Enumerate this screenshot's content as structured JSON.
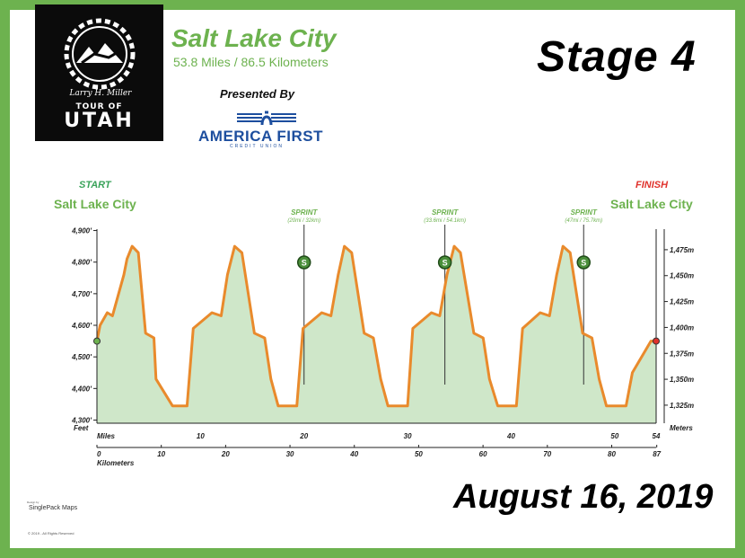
{
  "event": {
    "logo_tour": "TOUR OF",
    "logo_utah": "UTAH",
    "logo_signature": "Larry H. Miller",
    "city": "Salt Lake City",
    "distance": "53.8 Miles / 86.5 Kilometers",
    "stage": "Stage 4",
    "presented_by": "Presented By",
    "sponsor_name": "AMERICA FIRST",
    "sponsor_sub": "CREDIT UNION",
    "date": "August 16, 2019",
    "maker": "SinglePack Maps",
    "maker_small": "Design by",
    "copyright": "© 2019 - All Rights Reserved"
  },
  "labels": {
    "start": "START",
    "start_city": "Salt Lake City",
    "finish": "FINISH",
    "finish_city": "Salt Lake City"
  },
  "colors": {
    "brand_green": "#6db24f",
    "profile_line": "#e98a2c",
    "profile_fill": "#cfe7c9",
    "start_dot": "#6db24f",
    "finish_dot": "#e0322c",
    "sponsor_blue": "#1d4e9e"
  },
  "chart_data": {
    "type": "area",
    "xlabel": "Miles",
    "x2label": "Kilometers",
    "ylabel": "Feet",
    "y2label": "Meters",
    "xlim": [
      0,
      54
    ],
    "ylim": [
      4290,
      4930
    ],
    "grid": false,
    "x_ticks": [
      0,
      10,
      20,
      30,
      40,
      50,
      54
    ],
    "x_tick_labels": [
      "0",
      "10",
      "20",
      "30",
      "40",
      "50",
      "54"
    ],
    "x2_ticks_km": [
      0,
      10,
      20,
      30,
      40,
      50,
      60,
      70,
      80,
      87
    ],
    "x2_tick_labels": [
      "0",
      "10",
      "20",
      "30",
      "40",
      "50",
      "60",
      "70",
      "80",
      "87"
    ],
    "y_ticks": [
      4300,
      4400,
      4500,
      4600,
      4700,
      4800,
      4900
    ],
    "y_tick_labels": [
      "4,300'",
      "4,400'",
      "4,500'",
      "4,600'",
      "4,700'",
      "4,800'",
      "4,900'"
    ],
    "y2_ticks_m": [
      1325,
      1350,
      1375,
      1400,
      1425,
      1450,
      1475
    ],
    "y2_tick_labels": [
      "1,325m",
      "1,350m",
      "1,375m",
      "1,400m",
      "1,425m",
      "1,450m",
      "1,475m"
    ],
    "series": [
      {
        "x": [
          0,
          0.3,
          1.0,
          1.5,
          2.6,
          2.9,
          3.4,
          4.0,
          4.3,
          4.7,
          5.5,
          5.7,
          7.3,
          8.7,
          9.3,
          11.1,
          12.0,
          12.6,
          13.3,
          14.0,
          15.2,
          16.2,
          16.8,
          17.5,
          19.3,
          19.9,
          21.7,
          22.6,
          23.3,
          23.9,
          24.6,
          25.8,
          26.7,
          27.4,
          28.1,
          30.0,
          30.5,
          32.3,
          33.1,
          33.8,
          34.5,
          35.1,
          36.4,
          37.3,
          37.9,
          38.7,
          40.5,
          41.1,
          42.8,
          43.7,
          44.4,
          45.0,
          45.7,
          46.9,
          47.8,
          48.5,
          49.2,
          51.1,
          51.7,
          53.5,
          54.0
        ],
        "y": [
          4550,
          4600,
          4640,
          4630,
          4760,
          4810,
          4850,
          4830,
          4720,
          4575,
          4560,
          4430,
          4345,
          4345,
          4590,
          4640,
          4630,
          4760,
          4850,
          4830,
          4575,
          4560,
          4430,
          4345,
          4345,
          4590,
          4640,
          4630,
          4760,
          4850,
          4830,
          4575,
          4560,
          4430,
          4345,
          4345,
          4590,
          4640,
          4630,
          4760,
          4850,
          4830,
          4575,
          4560,
          4430,
          4345,
          4345,
          4590,
          4640,
          4630,
          4760,
          4850,
          4830,
          4575,
          4560,
          4430,
          4345,
          4345,
          4450,
          4550,
          4550
        ]
      }
    ],
    "sprints": [
      {
        "mile": 20,
        "label": "SPRINT",
        "sub": "(20mi / 32km)",
        "icon_letter": "S"
      },
      {
        "mile": 33.6,
        "label": "SPRINT",
        "sub": "(33.6mi / 54.1km)",
        "icon_letter": "S"
      },
      {
        "mile": 47,
        "label": "SPRINT",
        "sub": "(47mi / 75.7km)",
        "icon_letter": "S"
      }
    ]
  }
}
